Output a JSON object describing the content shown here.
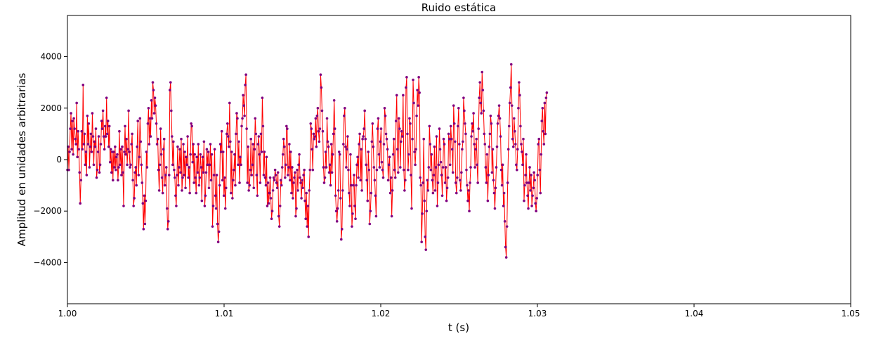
{
  "chart_data": {
    "type": "line",
    "title": "Ruido estática",
    "xlabel": "t (s)",
    "ylabel": "Amplitud en unidades arbitrarias",
    "xlim": [
      1.0,
      1.05
    ],
    "ylim": [
      -5600,
      5600
    ],
    "xticks": [
      1.0,
      1.01,
      1.02,
      1.03,
      1.04,
      1.05
    ],
    "xtick_labels": [
      "1.00",
      "1.01",
      "1.02",
      "1.03",
      "1.04",
      "1.05"
    ],
    "yticks": [
      -4000,
      -2000,
      0,
      2000,
      4000
    ],
    "ytick_labels": [
      "−4000",
      "−2000",
      "0",
      "2000",
      "4000"
    ],
    "grid": false,
    "line_color": "#ff0000",
    "marker_color": "#800080",
    "series": [
      {
        "marker": "dot",
        "x_start": 1.0,
        "x_step": 4.54e-05,
        "values": [
          -400,
          500,
          -400,
          300,
          1200,
          1800,
          400,
          1500,
          200,
          1600,
          1200,
          800,
          600,
          2200,
          100,
          1100,
          400,
          -500,
          -1700,
          -800,
          1100,
          400,
          2900,
          600,
          1000,
          -200,
          300,
          -600,
          1700,
          600,
          1400,
          -300,
          500,
          1000,
          300,
          1800,
          900,
          -200,
          700,
          500,
          1200,
          -700,
          -400,
          300,
          900,
          -500,
          -200,
          600,
          1500,
          1200,
          1900,
          900,
          400,
          1300,
          900,
          2400,
          1000,
          1500,
          500,
          1300,
          -100,
          400,
          -500,
          300,
          -800,
          300,
          -300,
          500,
          -400,
          100,
          200,
          -800,
          -300,
          1100,
          -200,
          400,
          -600,
          500,
          -500,
          -1800,
          300,
          1300,
          200,
          800,
          -200,
          400,
          1900,
          300,
          -300,
          -200,
          600,
          1000,
          -800,
          -1800,
          -1500,
          -500,
          -300,
          -1000,
          500,
          1500,
          -600,
          100,
          1600,
          700,
          -200,
          -900,
          -1700,
          -2700,
          -1400,
          -2500,
          -1600,
          300,
          -300,
          1400,
          2000,
          600,
          1600,
          900,
          2300,
          1600,
          3000,
          2700,
          1800,
          2400,
          2100,
          1400,
          600,
          800,
          -400,
          -1200,
          -200,
          1200,
          200,
          -700,
          -1300,
          400,
          800,
          -1000,
          -600,
          -300,
          -1900,
          -2700,
          -2400,
          -600,
          2700,
          3000,
          1900,
          900,
          -200,
          700,
          -400,
          -700,
          -1400,
          -1800,
          -600,
          500,
          -1000,
          -300,
          400,
          -500,
          800,
          -1200,
          -700,
          600,
          -600,
          300,
          -1100,
          100,
          -200,
          900,
          -700,
          -300,
          -1300,
          200,
          1400,
          1300,
          -100,
          600,
          -900,
          200,
          -700,
          -1300,
          100,
          -500,
          600,
          -1000,
          -700,
          200,
          -300,
          -1600,
          100,
          -500,
          700,
          -1800,
          -1400,
          -500,
          400,
          -200,
          300,
          -1100,
          -200,
          600,
          -800,
          200,
          -2600,
          -1800,
          -600,
          400,
          -1400,
          -1900,
          -600,
          -2500,
          -3200,
          -2800,
          -1000,
          600,
          300,
          1100,
          -800,
          300,
          -1400,
          -700,
          -1900,
          -1100,
          1000,
          1400,
          900,
          500,
          2200,
          700,
          -1300,
          300,
          -1500,
          -800,
          -400,
          200,
          -1000,
          1000,
          1800,
          1600,
          -200,
          700,
          -900,
          100,
          -200,
          1300,
          1600,
          2500,
          2100,
          1700,
          2900,
          3300,
          1200,
          -900,
          500,
          -1200,
          -1000,
          -400,
          800,
          -600,
          -200,
          600,
          -1100,
          400,
          1600,
          1000,
          -600,
          -1400,
          600,
          900,
          200,
          -900,
          1000,
          300,
          2400,
          1300,
          -600,
          300,
          -700,
          -1000,
          100,
          -1800,
          -900,
          -1700,
          -1300,
          -700,
          -1500,
          -2300,
          -2000,
          -1200,
          -700,
          -800,
          -400,
          -600,
          -900,
          -1100,
          -500,
          -2200,
          -2600,
          -1800,
          -800,
          -1000,
          -300,
          200,
          800,
          500,
          -700,
          -200,
          1300,
          1200,
          -600,
          -300,
          600,
          -800,
          300,
          -1300,
          -300,
          -1500,
          -900,
          -700,
          -500,
          -2200,
          -1900,
          -400,
          -1200,
          -200,
          200,
          -700,
          -900,
          -1500,
          -800,
          -1100,
          -600,
          -400,
          -1600,
          -2300,
          -1300,
          -2600,
          -1800,
          -3000,
          -1200,
          -400,
          1400,
          1200,
          400,
          -400,
          1000,
          800,
          900,
          1600,
          500,
          1700,
          2000,
          1100,
          700,
          1200,
          3300,
          2800,
          1900,
          1100,
          -300,
          -900,
          -700,
          300,
          -300,
          1600,
          700,
          500,
          -500,
          -200,
          -1000,
          600,
          -500,
          200,
          1000,
          2300,
          1200,
          -1400,
          -2000,
          -2400,
          -1900,
          -1200,
          300,
          200,
          -1500,
          -3100,
          -2700,
          -1200,
          600,
          1700,
          2000,
          500,
          -300,
          400,
          900,
          -400,
          -1300,
          -1800,
          200,
          -1000,
          -2600,
          -2100,
          -1000,
          -600,
          -1800,
          -2300,
          -1000,
          -200,
          100,
          -700,
          600,
          1000,
          -800,
          400,
          -1200,
          800,
          900,
          1200,
          1900,
          800,
          -200,
          -800,
          -1600,
          300,
          -400,
          -2500,
          -2000,
          -1300,
          700,
          1400,
          500,
          -300,
          -800,
          -1400,
          -2200,
          -400,
          1200,
          1600,
          200,
          -300,
          700,
          1200,
          -100,
          -400,
          -700,
          600,
          2000,
          1700,
          1000,
          800,
          400,
          -800,
          -200,
          100,
          -1300,
          -700,
          -2200,
          -1200,
          200,
          800,
          -400,
          -700,
          1500,
          2500,
          400,
          -500,
          1600,
          1200,
          -300,
          700,
          1100,
          900,
          2500,
          -400,
          -1200,
          -800,
          2800,
          3200,
          1000,
          -400,
          200,
          1600,
          1400,
          -600,
          -1900,
          800,
          3100,
          2200,
          300,
          -200,
          400,
          1700,
          2700,
          2100,
          3200,
          2600,
          -700,
          -1000,
          -3200,
          -2100,
          -900,
          800,
          -1600,
          -3000,
          -3500,
          -2000,
          -800,
          -1200,
          -300,
          1300,
          600,
          -400,
          200,
          -800,
          -1300,
          -600,
          500,
          -1200,
          -300,
          900,
          -1800,
          -900,
          -200,
          1200,
          400,
          -100,
          -600,
          -1400,
          -300,
          800,
          600,
          -900,
          -300,
          -1600,
          -1100,
          -700,
          1000,
          800,
          -200,
          1300,
          800,
          400,
          -500,
          2100,
          1400,
          700,
          -900,
          -1300,
          -700,
          1300,
          2000,
          600,
          -800,
          -1200,
          -500,
          400,
          700,
          2400,
          1900,
          1400,
          1000,
          -400,
          -1000,
          -1600,
          -1200,
          -2000,
          -900,
          -300,
          900,
          1400,
          1100,
          1800,
          600,
          -300,
          400,
          800,
          -200,
          -900,
          1200,
          2400,
          3000,
          2200,
          1800,
          3400,
          2700,
          1900,
          1000,
          600,
          -300,
          -900,
          200,
          -1600,
          -600,
          500,
          1000,
          1700,
          1400,
          -500,
          400,
          -800,
          -1300,
          -1900,
          -1100,
          -300,
          500,
          1400,
          1700,
          2100,
          1600,
          900,
          -400,
          -1000,
          -200,
          -1800,
          -1300,
          -2400,
          -3400,
          -3800,
          -2600,
          -900,
          400,
          1300,
          2200,
          2800,
          3700,
          2100,
          800,
          500,
          1600,
          1100,
          600,
          -200,
          -400,
          400,
          2000,
          3000,
          2500,
          1300,
          600,
          300,
          -200,
          800,
          -1600,
          -1000,
          -600,
          200,
          -900,
          -1400,
          -1900,
          -900,
          -300,
          -1200,
          -600,
          -1800,
          -1400,
          -1100,
          -500,
          -800,
          -1700,
          -2000,
          -1500,
          -600,
          600,
          800,
          -400,
          -1300,
          200,
          1500,
          2000,
          1100,
          600,
          2200,
          1000,
          2400,
          2600
        ]
      }
    ]
  }
}
